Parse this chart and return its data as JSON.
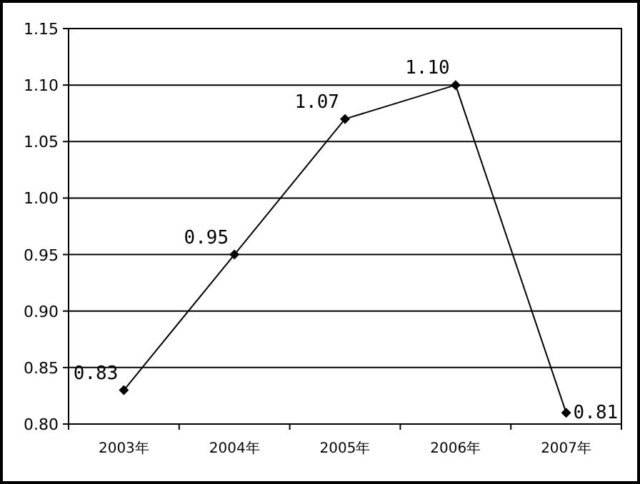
{
  "chart_data": {
    "type": "line",
    "categories": [
      "2003年",
      "2004年",
      "2005年",
      "2006年",
      "2007年"
    ],
    "values": [
      0.83,
      0.95,
      1.07,
      1.1,
      0.81
    ],
    "value_labels": [
      "0.83",
      "0.95",
      "1.07",
      "1.10",
      "0.81"
    ],
    "color": "#000000",
    "marker": "diamond",
    "line_style": "solid",
    "grid": "y",
    "ylim": [
      0.8,
      1.15
    ],
    "yticks": [
      {
        "value": 0.8,
        "label": "0.80"
      },
      {
        "value": 0.85,
        "label": "0.85"
      },
      {
        "value": 0.9,
        "label": "0.90"
      },
      {
        "value": 0.95,
        "label": "0.95"
      },
      {
        "value": 1.0,
        "label": "1.00"
      },
      {
        "value": 1.05,
        "label": "1.05"
      },
      {
        "value": 1.1,
        "label": "1.10"
      },
      {
        "value": 1.15,
        "label": "1.15"
      }
    ]
  }
}
